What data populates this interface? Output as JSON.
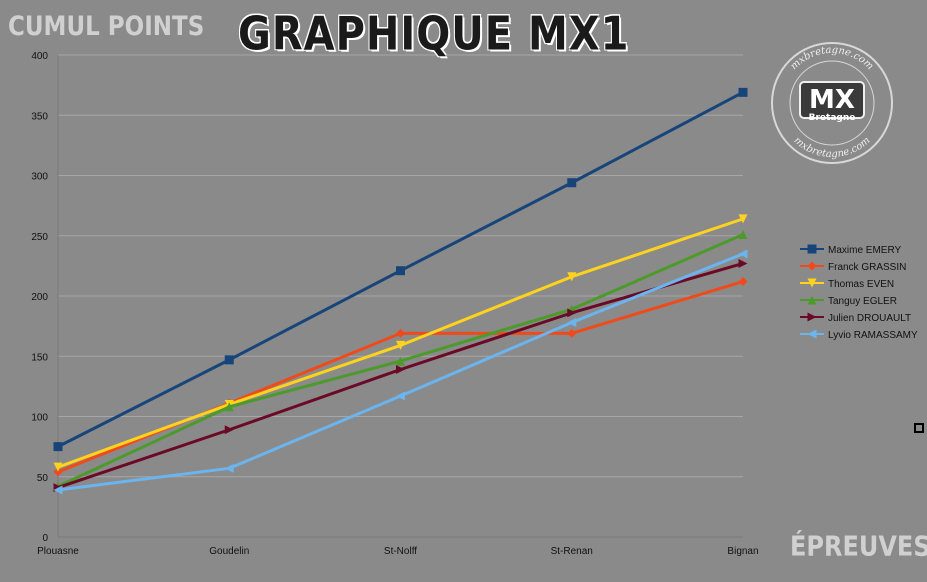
{
  "title": "GRAPHIQUE MX1",
  "watermark": {
    "brand": "MX",
    "sub": "Bretagne",
    "site": "mxbretagne.com"
  },
  "chart_data": {
    "type": "line",
    "title": "GRAPHIQUE MX1",
    "ylabel": "CUMUL POINTS",
    "xlabel": "ÉPREUVES",
    "categories": [
      "Plouasne",
      "Goudelin",
      "St-Nolff",
      "St-Renan",
      "Bignan"
    ],
    "ylim": [
      0,
      400
    ],
    "yticks": [
      0,
      50,
      100,
      150,
      200,
      250,
      300,
      350,
      400
    ],
    "grid": true,
    "legend": "right",
    "series": [
      {
        "name": "Maxime EMERY",
        "color": "#17457a",
        "marker": "square",
        "values": [
          75,
          147,
          221,
          294,
          369
        ]
      },
      {
        "name": "Franck GRASSIN",
        "color": "#f04a1a",
        "marker": "diamond",
        "values": [
          54,
          111,
          169,
          169,
          212
        ]
      },
      {
        "name": "Thomas EVEN",
        "color": "#ffd21e",
        "marker": "triangle-down",
        "values": [
          58,
          110,
          159,
          216,
          264
        ]
      },
      {
        "name": "Tanguy EGLER",
        "color": "#4c9a2a",
        "marker": "triangle-up",
        "values": [
          42,
          108,
          146,
          189,
          251
        ]
      },
      {
        "name": "Julien DROUAULT",
        "color": "#6b0a28",
        "marker": "triangle-right",
        "values": [
          41,
          89,
          139,
          186,
          227
        ]
      },
      {
        "name": "Lyvio RAMASSAMY",
        "color": "#6cb4ee",
        "marker": "triangle-left",
        "values": [
          39,
          57,
          117,
          178,
          235
        ]
      }
    ]
  }
}
